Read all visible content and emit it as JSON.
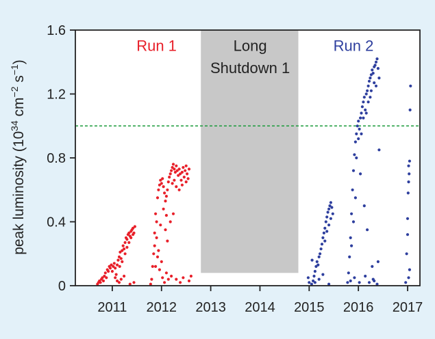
{
  "chart_data": {
    "type": "scatter",
    "title": "",
    "xlabel": "",
    "ylabel": "peak luminosity (10",
    "ylabel_exp1": "34",
    "ylabel_mid": " cm",
    "ylabel_exp2": "−2",
    "ylabel_s": " s",
    "ylabel_exp3": "−1",
    "ylabel_end": ")",
    "xlim": [
      2010.25,
      2017.25
    ],
    "ylim": [
      0,
      1.6
    ],
    "x_ticks": [
      2011,
      2012,
      2013,
      2014,
      2015,
      2016,
      2017
    ],
    "x_tick_labels": [
      "2011",
      "2012",
      "2013",
      "2014",
      "2015",
      "2016",
      "2017"
    ],
    "y_ticks": [
      0,
      0.4,
      0.8,
      1.2,
      1.6
    ],
    "y_tick_labels": [
      "0",
      "0.4",
      "0.8",
      "1.2",
      "1.6"
    ],
    "reference_line": {
      "y": 1.0,
      "color": "#1a9a3a",
      "style": "dashed"
    },
    "shaded_region": {
      "x_start": 2012.8,
      "x_end": 2014.78,
      "y_start": 0.08,
      "y_end": 1.6,
      "color": "#c8c8c8"
    },
    "annotations": [
      {
        "text": "Run 1",
        "x": 2011.9,
        "y": 1.47,
        "color": "#e8202a"
      },
      {
        "text": "Long",
        "x": 2013.8,
        "y": 1.47,
        "color": "#222222"
      },
      {
        "text": "Shutdown 1",
        "x": 2013.8,
        "y": 1.33,
        "color": "#222222"
      },
      {
        "text": "Run 2",
        "x": 2015.9,
        "y": 1.47,
        "color": "#2e3f9e"
      }
    ],
    "series": [
      {
        "color": "#e8202a",
        "points": [
          [
            2010.7,
            0.01
          ],
          [
            2010.72,
            0.02
          ],
          [
            2010.74,
            0.03
          ],
          [
            2010.76,
            0.02
          ],
          [
            2010.78,
            0.04
          ],
          [
            2010.8,
            0.05
          ],
          [
            2010.82,
            0.03
          ],
          [
            2010.84,
            0.06
          ],
          [
            2010.86,
            0.08
          ],
          [
            2010.88,
            0.05
          ],
          [
            2010.9,
            0.1
          ],
          [
            2010.92,
            0.09
          ],
          [
            2010.94,
            0.12
          ],
          [
            2010.96,
            0.11
          ],
          [
            2010.98,
            0.13
          ],
          [
            2011.0,
            0.09
          ],
          [
            2011.02,
            0.12
          ],
          [
            2011.04,
            0.14
          ],
          [
            2011.06,
            0.11
          ],
          [
            2011.08,
            0.07
          ],
          [
            2011.1,
            0.13
          ],
          [
            2011.12,
            0.16
          ],
          [
            2011.14,
            0.18
          ],
          [
            2011.16,
            0.21
          ],
          [
            2011.18,
            0.17
          ],
          [
            2011.2,
            0.22
          ],
          [
            2011.22,
            0.25
          ],
          [
            2011.24,
            0.23
          ],
          [
            2011.26,
            0.27
          ],
          [
            2011.28,
            0.3
          ],
          [
            2011.3,
            0.29
          ],
          [
            2011.32,
            0.32
          ],
          [
            2011.34,
            0.33
          ],
          [
            2011.36,
            0.31
          ],
          [
            2011.38,
            0.34
          ],
          [
            2011.4,
            0.35
          ],
          [
            2011.42,
            0.36
          ],
          [
            2011.44,
            0.33
          ],
          [
            2011.46,
            0.37
          ],
          [
            2011.3,
            0.24
          ],
          [
            2011.34,
            0.27
          ],
          [
            2011.38,
            0.3
          ],
          [
            2011.42,
            0.32
          ],
          [
            2011.06,
            0.05
          ],
          [
            2011.1,
            0.03
          ],
          [
            2011.14,
            0.02
          ],
          [
            2011.18,
            0.04
          ],
          [
            2011.24,
            0.06
          ],
          [
            2011.36,
            0.01
          ],
          [
            2011.44,
            0.02
          ],
          [
            2011.15,
            0.12
          ],
          [
            2011.2,
            0.15
          ],
          [
            2011.26,
            0.2
          ],
          [
            2011.78,
            0.01
          ],
          [
            2011.8,
            0.04
          ],
          [
            2011.82,
            0.12
          ],
          [
            2011.84,
            0.2
          ],
          [
            2011.86,
            0.33
          ],
          [
            2011.88,
            0.45
          ],
          [
            2011.9,
            0.4
          ],
          [
            2011.92,
            0.55
          ],
          [
            2011.94,
            0.6
          ],
          [
            2011.96,
            0.63
          ],
          [
            2011.98,
            0.66
          ],
          [
            2012.0,
            0.64
          ],
          [
            2012.02,
            0.67
          ],
          [
            2012.04,
            0.62
          ],
          [
            2012.06,
            0.58
          ],
          [
            2012.08,
            0.53
          ],
          [
            2012.1,
            0.56
          ],
          [
            2012.12,
            0.6
          ],
          [
            2012.14,
            0.65
          ],
          [
            2012.16,
            0.68
          ],
          [
            2012.18,
            0.7
          ],
          [
            2012.2,
            0.72
          ],
          [
            2012.22,
            0.74
          ],
          [
            2012.24,
            0.76
          ],
          [
            2012.26,
            0.73
          ],
          [
            2012.28,
            0.71
          ],
          [
            2012.3,
            0.75
          ],
          [
            2012.32,
            0.72
          ],
          [
            2012.34,
            0.69
          ],
          [
            2012.36,
            0.73
          ],
          [
            2012.38,
            0.7
          ],
          [
            2012.4,
            0.66
          ],
          [
            2012.42,
            0.71
          ],
          [
            2012.44,
            0.74
          ],
          [
            2012.46,
            0.68
          ],
          [
            2012.48,
            0.72
          ],
          [
            2012.5,
            0.75
          ],
          [
            2012.52,
            0.7
          ],
          [
            2012.54,
            0.67
          ],
          [
            2012.56,
            0.73
          ],
          [
            2012.22,
            0.64
          ],
          [
            2012.26,
            0.66
          ],
          [
            2012.3,
            0.62
          ],
          [
            2012.36,
            0.6
          ],
          [
            2012.42,
            0.63
          ],
          [
            2012.5,
            0.65
          ],
          [
            2012.04,
            0.48
          ],
          [
            2012.1,
            0.44
          ],
          [
            2011.86,
            0.25
          ],
          [
            2011.9,
            0.3
          ],
          [
            2011.92,
            0.18
          ],
          [
            2011.94,
            0.22
          ],
          [
            2011.96,
            0.1
          ],
          [
            2012.0,
            0.15
          ],
          [
            2012.02,
            0.05
          ],
          [
            2012.06,
            0.02
          ],
          [
            2012.1,
            0.08
          ],
          [
            2012.14,
            0.04
          ],
          [
            2012.2,
            0.06
          ],
          [
            2012.3,
            0.04
          ],
          [
            2012.38,
            0.02
          ],
          [
            2012.44,
            0.05
          ],
          [
            2012.56,
            0.03
          ],
          [
            2012.6,
            0.06
          ],
          [
            2012.08,
            0.35
          ],
          [
            2012.12,
            0.28
          ],
          [
            2012.18,
            0.4
          ],
          [
            2012.24,
            0.45
          ],
          [
            2011.88,
            0.12
          ],
          [
            2011.98,
            0.38
          ]
        ]
      },
      {
        "color": "#2e3f9e",
        "points": [
          [
            2015.05,
            0.01
          ],
          [
            2015.08,
            0.03
          ],
          [
            2015.1,
            0.06
          ],
          [
            2015.12,
            0.09
          ],
          [
            2015.14,
            0.12
          ],
          [
            2015.16,
            0.15
          ],
          [
            2015.18,
            0.13
          ],
          [
            2015.2,
            0.18
          ],
          [
            2015.22,
            0.2
          ],
          [
            2015.24,
            0.23
          ],
          [
            2015.26,
            0.26
          ],
          [
            2015.28,
            0.3
          ],
          [
            2015.3,
            0.33
          ],
          [
            2015.32,
            0.36
          ],
          [
            2015.34,
            0.4
          ],
          [
            2015.36,
            0.43
          ],
          [
            2015.38,
            0.46
          ],
          [
            2015.4,
            0.48
          ],
          [
            2015.42,
            0.5
          ],
          [
            2015.44,
            0.52
          ],
          [
            2015.46,
            0.49
          ],
          [
            2015.48,
            0.45
          ],
          [
            2015.32,
            0.28
          ],
          [
            2015.36,
            0.34
          ],
          [
            2015.4,
            0.38
          ],
          [
            2015.44,
            0.42
          ],
          [
            2015.0,
            0.02
          ],
          [
            2014.98,
            0.05
          ],
          [
            2015.12,
            0.02
          ],
          [
            2015.2,
            0.04
          ],
          [
            2015.28,
            0.07
          ],
          [
            2015.4,
            0.01
          ],
          [
            2015.06,
            0.16
          ],
          [
            2015.78,
            0.02
          ],
          [
            2015.8,
            0.08
          ],
          [
            2015.82,
            0.18
          ],
          [
            2015.84,
            0.3
          ],
          [
            2015.86,
            0.45
          ],
          [
            2015.88,
            0.6
          ],
          [
            2015.9,
            0.72
          ],
          [
            2015.92,
            0.82
          ],
          [
            2015.94,
            0.9
          ],
          [
            2015.96,
            0.95
          ],
          [
            2015.98,
            1.0
          ],
          [
            2016.0,
            1.03
          ],
          [
            2016.02,
            0.98
          ],
          [
            2016.04,
            1.05
          ],
          [
            2016.06,
            1.08
          ],
          [
            2016.08,
            1.12
          ],
          [
            2016.1,
            1.15
          ],
          [
            2016.12,
            1.18
          ],
          [
            2016.14,
            1.1
          ],
          [
            2016.16,
            1.2
          ],
          [
            2016.18,
            1.22
          ],
          [
            2016.2,
            1.25
          ],
          [
            2016.22,
            1.28
          ],
          [
            2016.24,
            1.3
          ],
          [
            2016.26,
            1.32
          ],
          [
            2016.28,
            1.35
          ],
          [
            2016.3,
            1.33
          ],
          [
            2016.32,
            1.37
          ],
          [
            2016.34,
            1.38
          ],
          [
            2016.36,
            1.4
          ],
          [
            2016.38,
            1.42
          ],
          [
            2016.4,
            1.36
          ],
          [
            2016.42,
            1.3
          ],
          [
            2016.2,
            1.15
          ],
          [
            2016.26,
            1.22
          ],
          [
            2016.32,
            1.27
          ],
          [
            2016.1,
            1.05
          ],
          [
            2016.0,
            0.92
          ],
          [
            2015.96,
            0.8
          ],
          [
            2016.06,
            0.95
          ],
          [
            2016.16,
            1.08
          ],
          [
            2016.24,
            1.18
          ],
          [
            2016.36,
            1.25
          ],
          [
            2015.86,
            0.25
          ],
          [
            2015.9,
            0.4
          ],
          [
            2015.94,
            0.55
          ],
          [
            2016.04,
            0.7
          ],
          [
            2016.12,
            0.5
          ],
          [
            2016.18,
            0.35
          ],
          [
            2016.28,
            0.12
          ],
          [
            2016.32,
            0.03
          ],
          [
            2015.84,
            0.03
          ],
          [
            2015.92,
            0.05
          ],
          [
            2016.02,
            0.02
          ],
          [
            2016.14,
            0.06
          ],
          [
            2016.22,
            0.02
          ],
          [
            2016.3,
            0.04
          ],
          [
            2016.38,
            0.01
          ],
          [
            2016.42,
            0.85
          ],
          [
            2016.4,
            0.15
          ],
          [
            2016.96,
            0.02
          ],
          [
            2016.98,
            0.2
          ],
          [
            2017.0,
            0.32
          ],
          [
            2017.0,
            0.42
          ],
          [
            2017.01,
            0.58
          ],
          [
            2017.02,
            0.65
          ],
          [
            2017.03,
            0.7
          ],
          [
            2017.02,
            0.75
          ],
          [
            2017.04,
            0.78
          ],
          [
            2017.05,
            1.1
          ],
          [
            2017.06,
            1.25
          ],
          [
            2017.02,
            0.05
          ],
          [
            2017.04,
            0.1
          ]
        ]
      }
    ]
  }
}
